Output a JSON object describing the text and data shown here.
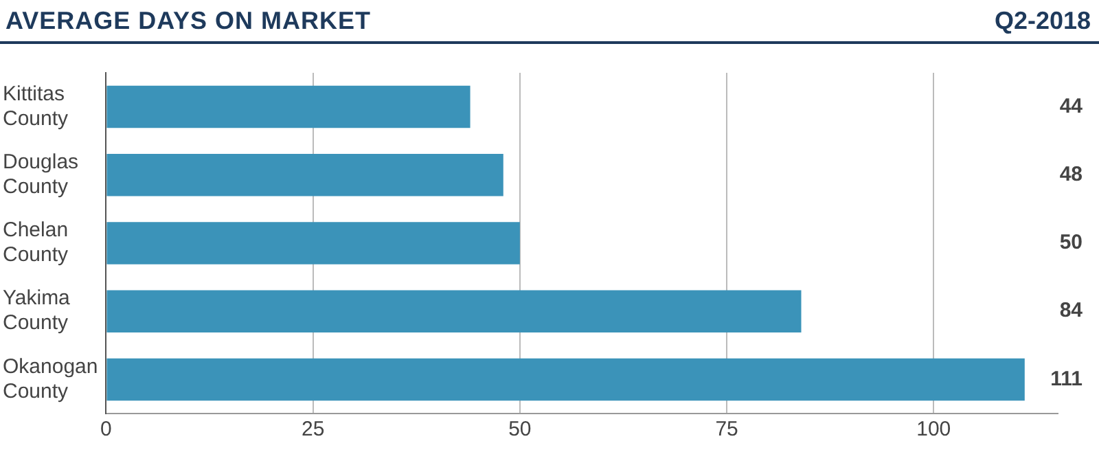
{
  "chart_data": {
    "type": "bar",
    "orientation": "horizontal",
    "title": "AVERAGE DAYS ON MARKET",
    "subtitle": "Q2-2018",
    "categories": [
      "Kittitas County",
      "Douglas County",
      "Chelan County",
      "Yakima County",
      "Okanogan County"
    ],
    "values": [
      44,
      48,
      50,
      84,
      111
    ],
    "color": "#3b93b9",
    "xlim": [
      0,
      115
    ],
    "xticks": [
      0,
      25,
      50,
      75,
      100
    ],
    "grid": "x",
    "data_labels": true
  }
}
